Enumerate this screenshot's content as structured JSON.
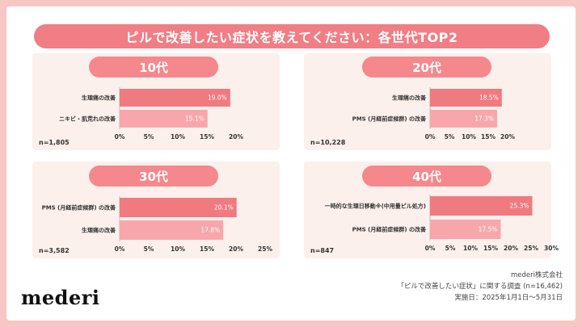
{
  "title": "ピルで改善したい症状を教えてください：各世代TOP2",
  "footer": {
    "line1": "mederi株式会社",
    "line2": "「ピルで改善したい症状」に関する調査 (n=16,462)",
    "line3": "実施日：2025年1月1日〜5月31日"
  },
  "logo": "mederi",
  "colors": {
    "accent": "#f07e84",
    "bar_top": "#ef7a80",
    "bar_second": "#f7a7ab",
    "panel_bg": "#fcf0ec"
  },
  "chart_data": [
    {
      "type": "bar",
      "orientation": "horizontal",
      "title": "10代",
      "n": "n=1,805",
      "categories": [
        "生理痛の改善",
        "ニキビ・肌荒れの改善"
      ],
      "values": [
        19.0,
        15.1
      ],
      "value_labels": [
        "19.0%",
        "15.1%"
      ],
      "xlim": [
        0,
        20
      ],
      "ticks": [
        "0%",
        "5%",
        "10%",
        "15%",
        "20%"
      ]
    },
    {
      "type": "bar",
      "orientation": "horizontal",
      "title": "20代",
      "n": "n=10,228",
      "categories": [
        "生理痛の改善",
        "PMS (月経前症候群) の改善"
      ],
      "values": [
        18.5,
        17.3
      ],
      "value_labels": [
        "18.5%",
        "17.3%"
      ],
      "xlim": [
        0,
        20
      ],
      "ticks": [
        "0%",
        "5%",
        "10%",
        "15%",
        "20%"
      ]
    },
    {
      "type": "bar",
      "orientation": "horizontal",
      "title": "30代",
      "n": "n=3,582",
      "categories": [
        "PMS (月経前症候群) の改善",
        "生理痛の改善"
      ],
      "values": [
        20.1,
        17.8
      ],
      "value_labels": [
        "20.1%",
        "17.8%"
      ],
      "xlim": [
        0,
        25
      ],
      "ticks": [
        "0%",
        "5%",
        "10%",
        "15%",
        "20%",
        "25%"
      ]
    },
    {
      "type": "bar",
      "orientation": "horizontal",
      "title": "40代",
      "n": "n=847",
      "categories": [
        "一時的な生理日移動※(中用量ピル処方)",
        "PMS (月経前症候群) の改善"
      ],
      "values": [
        25.3,
        17.5
      ],
      "value_labels": [
        "25.3%",
        "17.5%"
      ],
      "xlim": [
        0,
        30
      ],
      "ticks": [
        "0%",
        "5%",
        "10%",
        "15%",
        "20%",
        "25%",
        "30%"
      ]
    }
  ]
}
